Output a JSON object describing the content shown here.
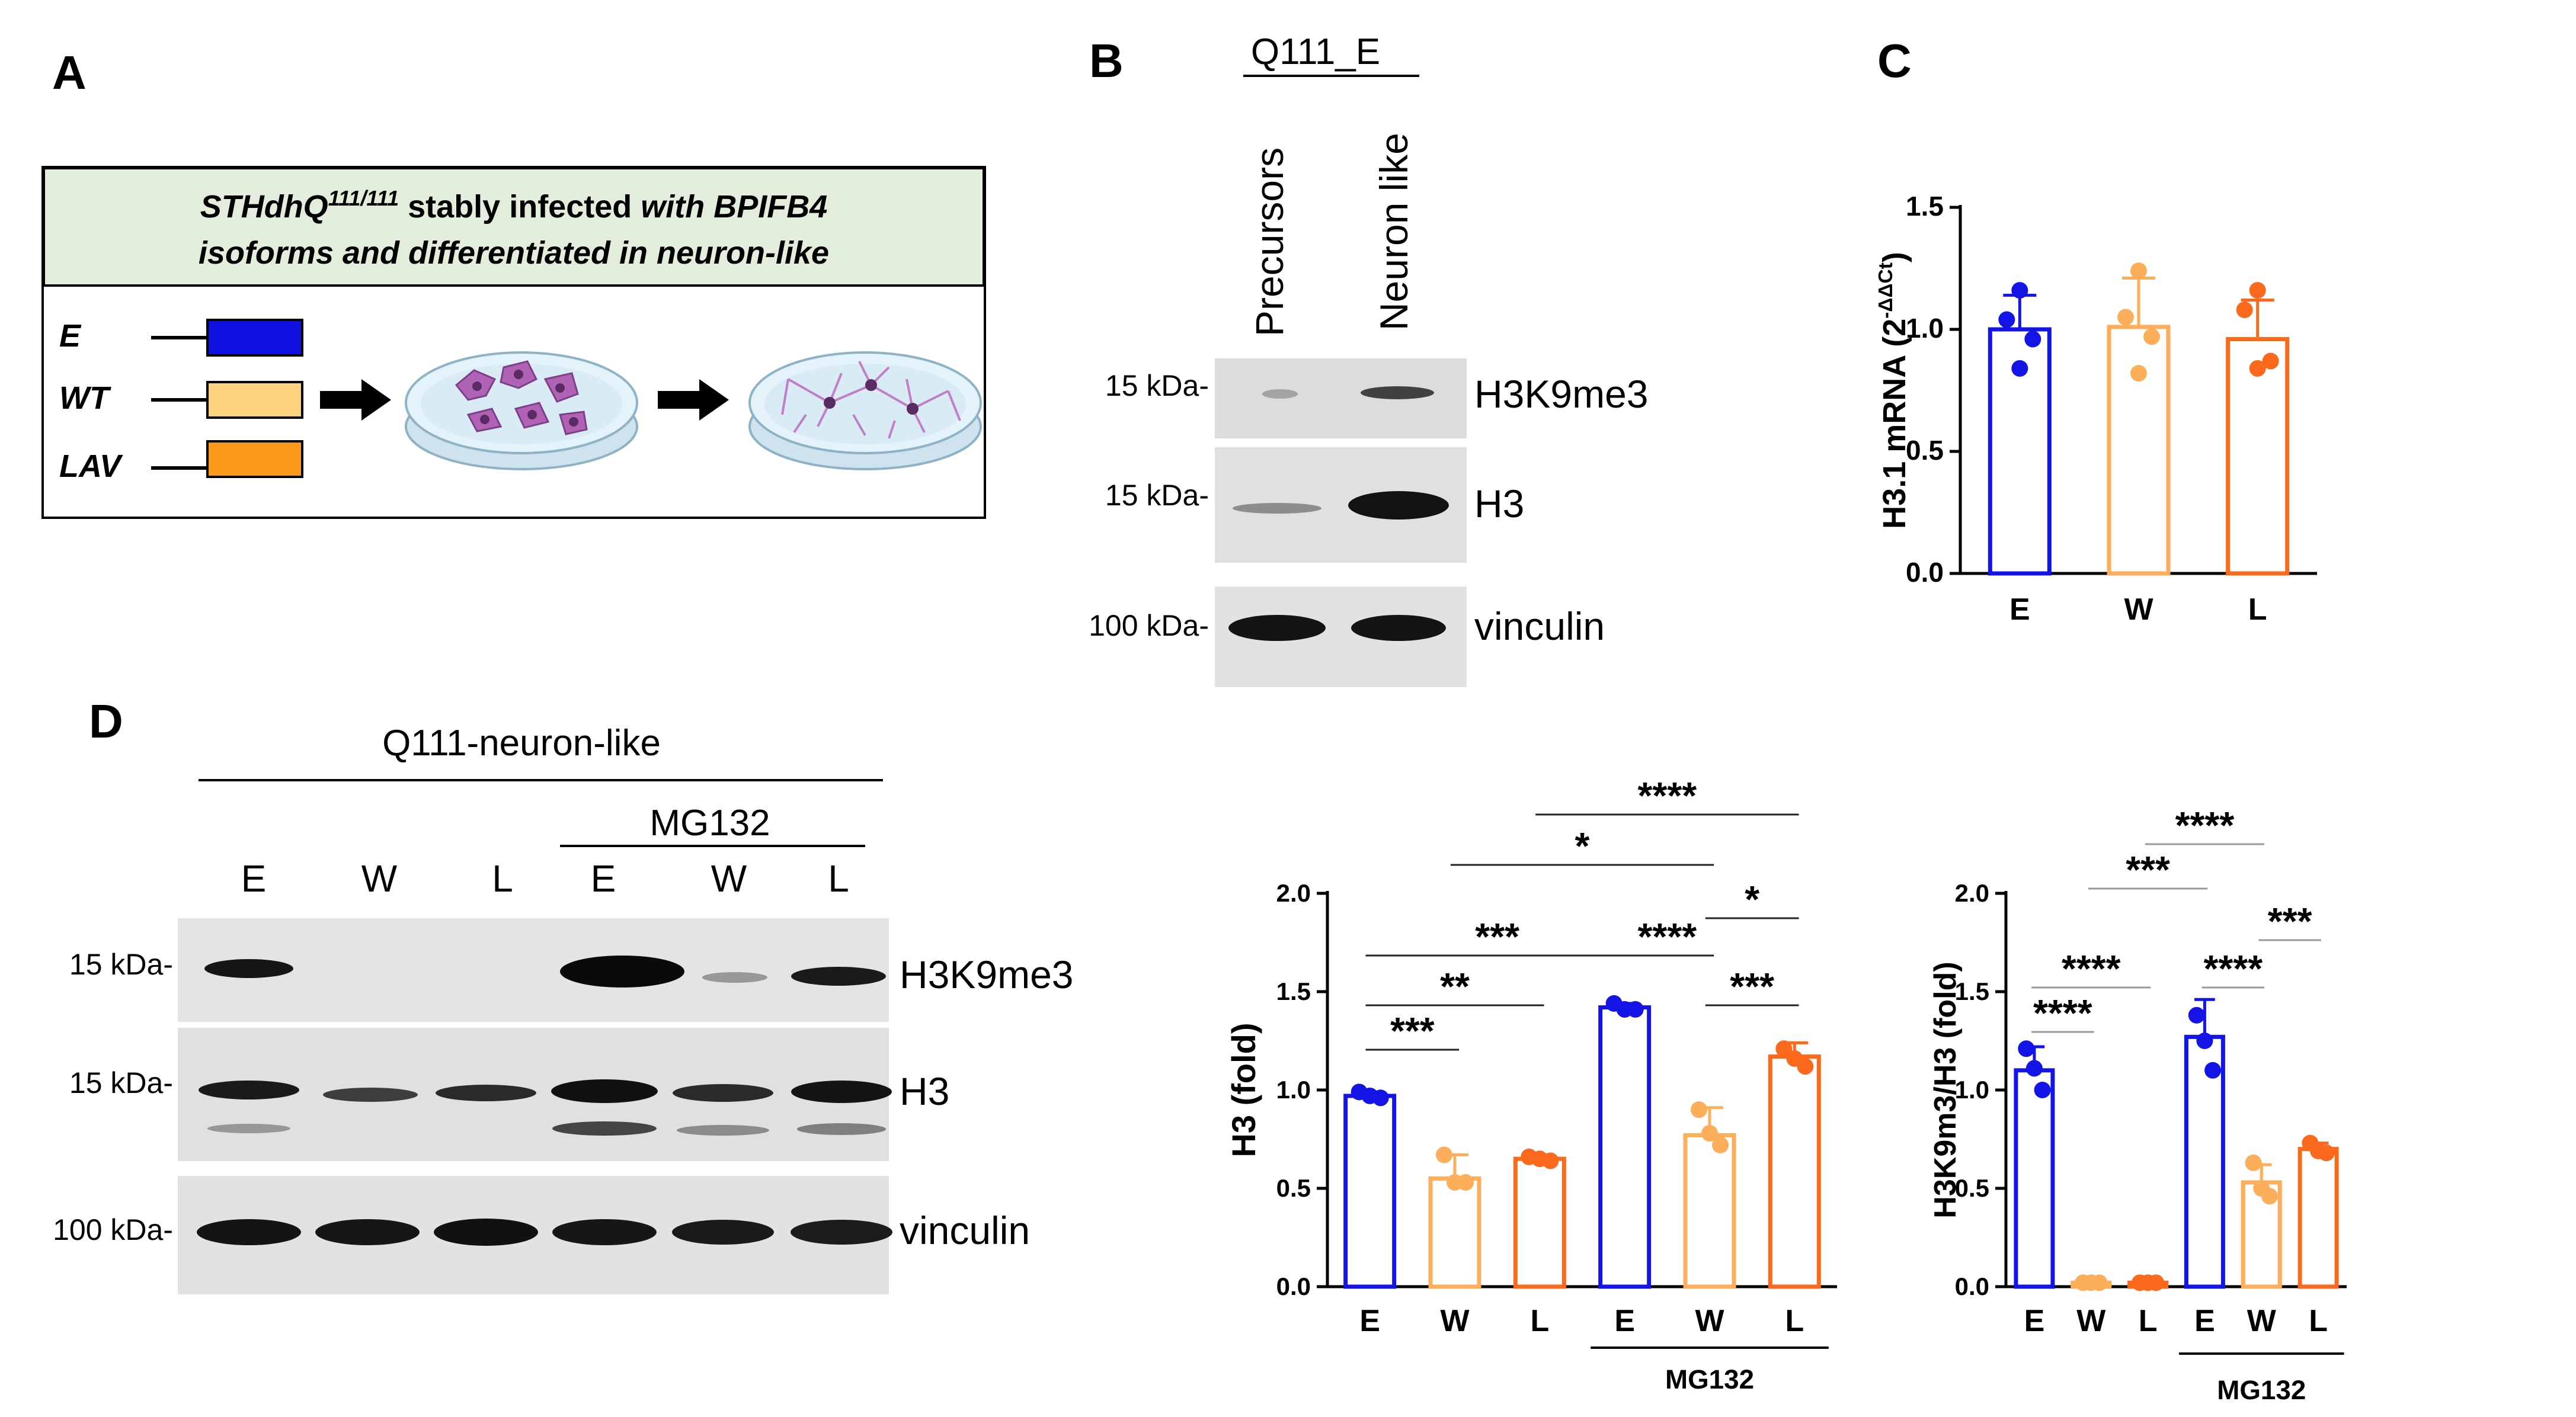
{
  "panels": {
    "A": {
      "letter": "A",
      "header_line1_prefix": "STHdhQ",
      "header_line1_sup": "111/111",
      "header_line1_mid": " stably infected ",
      "header_line1_suffix": "with BPIFB4",
      "header_line2": "isoforms and differentiated in neuron-like",
      "isoforms": [
        "E",
        "WT",
        "LAV"
      ],
      "header_bg": "#e3eddb",
      "isoform_colors": [
        "#1010e0",
        "#fdd37f",
        "#fb9a18"
      ]
    },
    "B": {
      "letter": "B",
      "group_label": "Q111_E",
      "lanes": [
        "Precursors",
        "Neuron like"
      ],
      "blots": [
        {
          "marker": "15 kDa-",
          "protein": "H3K9me3"
        },
        {
          "marker": "15 kDa-",
          "protein": "H3"
        },
        {
          "marker": "100 kDa-",
          "protein": "vinculin"
        }
      ]
    },
    "D": {
      "letter": "D",
      "group_label": "Q111-neuron-like",
      "treatment_label": "MG132",
      "lanes": [
        "E",
        "W",
        "L",
        "E",
        "W",
        "L"
      ],
      "blots": [
        {
          "marker": "15 kDa-",
          "protein": "H3K9me3"
        },
        {
          "marker": "15 kDa-",
          "protein": "H3"
        },
        {
          "marker": "100 kDa-",
          "protein": "vinculin"
        }
      ]
    }
  },
  "chart_data": [
    {
      "panel": "C",
      "letter": "C",
      "type": "bar",
      "categories": [
        "E",
        "W",
        "L"
      ],
      "values": [
        1.0,
        1.01,
        0.96
      ],
      "errors": [
        0.14,
        0.2,
        0.16
      ],
      "points": [
        [
          1.16,
          1.04,
          0.96,
          0.84
        ],
        [
          1.24,
          1.05,
          0.97,
          0.82
        ],
        [
          1.16,
          1.08,
          0.87,
          0.84
        ]
      ],
      "ylabel_main": "H3.1 mRNA (2",
      "ylabel_sup": "-ΔΔCt",
      "ylabel_end": ")",
      "ylim": [
        0,
        1.5
      ],
      "yticks": [
        "0.0",
        "0.5",
        "1.0",
        "1.5"
      ],
      "colors": [
        "#1414e6",
        "#fdae5a",
        "#fb6a1c"
      ]
    },
    {
      "panel": "D-H3",
      "type": "bar",
      "categories": [
        "E",
        "W",
        "L",
        "E",
        "W",
        "L"
      ],
      "values": [
        0.97,
        0.55,
        0.65,
        1.42,
        0.77,
        1.17
      ],
      "errors": [
        0.02,
        0.12,
        0.01,
        0.02,
        0.14,
        0.07
      ],
      "points": [
        [
          0.99,
          0.97,
          0.96
        ],
        [
          0.67,
          0.53,
          0.53
        ],
        [
          0.66,
          0.65,
          0.64
        ],
        [
          1.44,
          1.41,
          1.41
        ],
        [
          0.9,
          0.78,
          0.72
        ],
        [
          1.21,
          1.16,
          1.12
        ]
      ],
      "ylabel": "H3 (fold)",
      "ylim": [
        0,
        2.0
      ],
      "yticks": [
        "0.0",
        "0.5",
        "1.0",
        "1.5",
        "2.0"
      ],
      "group_label": "MG132",
      "significance": [
        {
          "label": "****",
          "from": 3,
          "to": 6
        },
        {
          "label": "*",
          "from": 2,
          "to": 5
        },
        {
          "label": "*",
          "from": 5,
          "to": 6
        },
        {
          "label": "***",
          "from": 1,
          "to": 4
        },
        {
          "label": "****",
          "from": 4,
          "to": 5
        },
        {
          "label": "**",
          "from": 1,
          "to": 3
        },
        {
          "label": "***",
          "from": 5,
          "to": 6
        },
        {
          "label": "***",
          "from": 1,
          "to": 2
        }
      ],
      "colors": [
        "#1414e6",
        "#fdae5a",
        "#fb6a1c",
        "#1414e6",
        "#fdae5a",
        "#fb6a1c"
      ]
    },
    {
      "panel": "D-H3K9me3",
      "type": "bar",
      "categories": [
        "E",
        "W",
        "L",
        "E",
        "W",
        "L"
      ],
      "values": [
        1.1,
        0.02,
        0.02,
        1.27,
        0.53,
        0.7
      ],
      "errors": [
        0.12,
        0.0,
        0.0,
        0.19,
        0.09,
        0.03
      ],
      "points": [
        [
          1.21,
          1.11,
          1.0
        ],
        [
          0.02,
          0.02,
          0.02
        ],
        [
          0.02,
          0.02,
          0.02
        ],
        [
          1.38,
          1.25,
          1.1
        ],
        [
          0.63,
          0.5,
          0.46
        ],
        [
          0.73,
          0.69,
          0.68
        ]
      ],
      "ylabel": "H3K9m3/H3  (fold)",
      "ylim": [
        0,
        2.0
      ],
      "yticks": [
        "0.0",
        "0.5",
        "1.0",
        "1.5",
        "2.0"
      ],
      "group_label": "MG132",
      "significance": [
        {
          "label": "****",
          "from": 3,
          "to": 5
        },
        {
          "label": "***",
          "from": 2,
          "to": 4
        },
        {
          "label": "***",
          "from": 5,
          "to": 6
        },
        {
          "label": "****",
          "from": 1,
          "to": 3
        },
        {
          "label": "****",
          "from": 4,
          "to": 5
        },
        {
          "label": "****",
          "from": 1,
          "to": 2
        }
      ],
      "colors": [
        "#1414e6",
        "#fdae5a",
        "#fb6a1c",
        "#1414e6",
        "#fdae5a",
        "#fb6a1c"
      ]
    }
  ]
}
